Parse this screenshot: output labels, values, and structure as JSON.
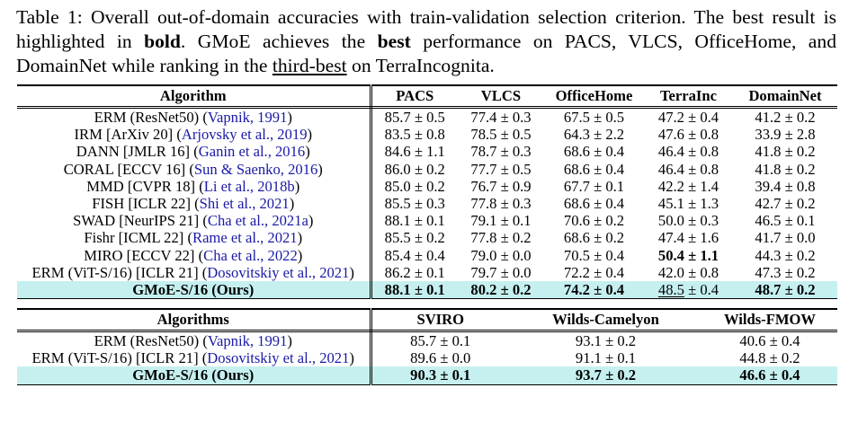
{
  "caption": {
    "part1": "Table 1: Overall out-of-domain accuracies with train-validation selection criterion. The best result is highlighted in ",
    "bold_word": "bold",
    "part2": ". GMoE achieves the ",
    "best_word": "best",
    "part3": " performance on PACS, VLCS, OfficeHome, and DomainNet while ranking in the ",
    "third_word": "third-best",
    "part4": " on TerraIncognita."
  },
  "table1": {
    "headers": [
      "Algorithm",
      "PACS",
      "VLCS",
      "OfficeHome",
      "TerraInc",
      "DomainNet"
    ],
    "rows": [
      {
        "alg": "ERM (ResNet50) ",
        "cite": "Vapnik, 1991",
        "vals": [
          "85.7 ± 0.5",
          "77.4 ± 0.3",
          "67.5 ± 0.5",
          "47.2 ± 0.4",
          "41.2 ± 0.2"
        ]
      },
      {
        "alg": "IRM [ArXiv 20] ",
        "cite": "Arjovsky et al., 2019",
        "vals": [
          "83.5 ± 0.8",
          "78.5 ± 0.5",
          "64.3 ± 2.2",
          "47.6 ± 0.8",
          "33.9 ± 2.8"
        ]
      },
      {
        "alg": "DANN [JMLR 16] ",
        "cite": "Ganin et al., 2016",
        "vals": [
          "84.6 ± 1.1",
          "78.7 ± 0.3",
          "68.6 ± 0.4",
          "46.4 ± 0.8",
          "41.8 ± 0.2"
        ]
      },
      {
        "alg": "CORAL [ECCV 16] ",
        "cite": "Sun & Saenko, 2016",
        "vals": [
          "86.0 ± 0.2",
          "77.7 ± 0.5",
          "68.6 ± 0.4",
          "46.4 ± 0.8",
          "41.8 ± 0.2"
        ]
      },
      {
        "alg": "MMD [CVPR 18] ",
        "cite": "Li et al., 2018b",
        "vals": [
          "85.0 ± 0.2",
          "76.7 ± 0.9",
          "67.7 ± 0.1",
          "42.2 ± 1.4",
          "39.4 ± 0.8"
        ]
      },
      {
        "alg": "FISH [ICLR 22] ",
        "cite": "Shi et al., 2021",
        "vals": [
          "85.5 ± 0.3",
          "77.8 ± 0.3",
          "68.6 ± 0.4",
          "45.1 ± 1.3",
          "42.7 ± 0.2"
        ]
      },
      {
        "alg": "SWAD [NeurIPS 21] ",
        "cite": "Cha et al., 2021a",
        "vals": [
          "88.1 ± 0.1",
          "79.1 ± 0.1",
          "70.6 ± 0.2",
          "50.0 ± 0.3",
          "46.5 ± 0.1"
        ]
      },
      {
        "alg": "Fishr [ICML 22] ",
        "cite": "Rame et al., 2021",
        "vals": [
          "85.5 ± 0.2",
          "77.8 ± 0.2",
          "68.6 ± 0.2",
          "47.4 ± 1.6",
          "41.7 ± 0.0"
        ]
      },
      {
        "alg": "MIRO [ECCV 22] ",
        "cite": "Cha et al., 2022",
        "vals": [
          "85.4 ± 0.4",
          "79.0 ± 0.0",
          "70.5 ± 0.4",
          "50.4 ± 1.1",
          "44.3 ± 0.2"
        ]
      },
      {
        "alg": "ERM (ViT-S/16) [ICLR 21] ",
        "cite": "Dosovitskiy et al., 2021",
        "vals": [
          "86.2 ± 0.1",
          "79.7 ± 0.0",
          "72.2 ± 0.4",
          "42.0 ± 0.8",
          "47.3 ± 0.2"
        ]
      }
    ],
    "ours": {
      "alg": "GMoE-S/16 (Ours)",
      "vals": [
        "88.1 ± 0.1",
        "80.2 ± 0.2",
        "74.2 ± 0.4",
        "48.5 ± 0.4",
        "48.7 ± 0.2"
      ]
    }
  },
  "table2": {
    "headers": [
      "Algorithms",
      "SVIRO",
      "Wilds-Camelyon",
      "Wilds-FMOW"
    ],
    "rows": [
      {
        "alg": "ERM (ResNet50) ",
        "cite": "Vapnik, 1991",
        "vals": [
          "85.7 ± 0.1",
          "93.1 ± 0.2",
          "40.6 ± 0.4"
        ]
      },
      {
        "alg": "ERM (ViT-S/16) [ICLR 21] ",
        "cite": "Dosovitskiy et al., 2021",
        "vals": [
          "89.6 ± 0.0",
          "91.1 ± 0.1",
          "44.8 ± 0.2"
        ]
      }
    ],
    "ours": {
      "alg": "GMoE-S/16 (Ours)",
      "vals": [
        "90.3 ± 0.1",
        "93.7 ± 0.2",
        "46.6 ± 0.4"
      ]
    }
  }
}
